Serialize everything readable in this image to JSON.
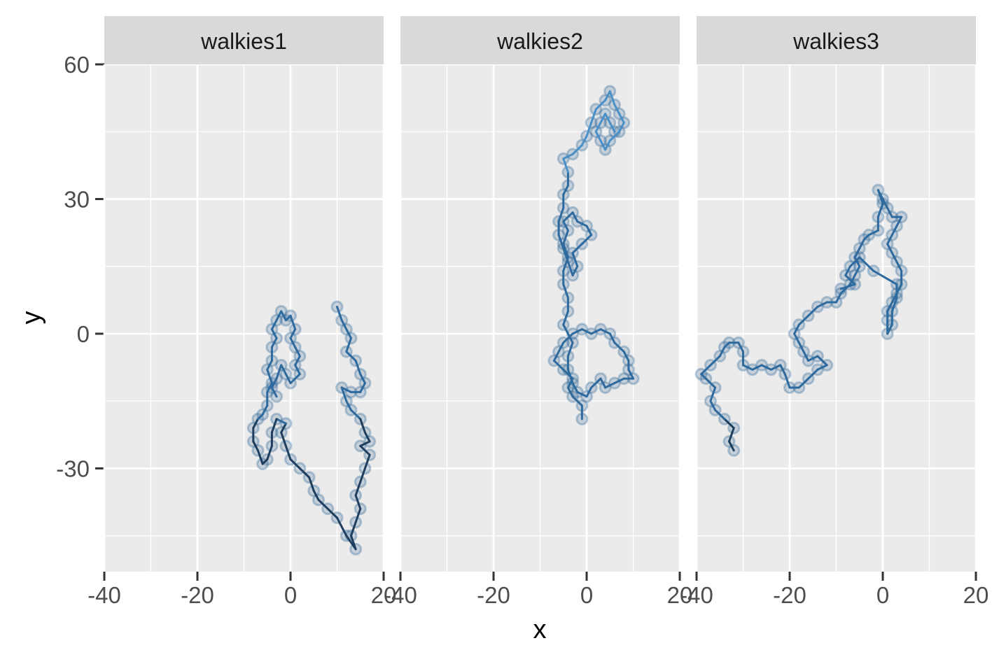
{
  "chart_data": {
    "type": "line",
    "facet_labels": [
      "walkies1",
      "walkies2",
      "walkies3"
    ],
    "xlabel": "x",
    "ylabel": "y",
    "xlim": [
      -40,
      20
    ],
    "ylim": [
      -53,
      60
    ],
    "x_ticks": [
      -40,
      -20,
      0,
      20
    ],
    "x_tick_labels": [
      "-40",
      "-20",
      "0",
      "20"
    ],
    "y_ticks": [
      -30,
      0,
      30,
      60
    ],
    "y_tick_labels": [
      "-30",
      "0",
      "30",
      "60"
    ],
    "grid": true,
    "legend": "none",
    "colors": {
      "panel_bg": "#EBEBEB",
      "strip_bg": "#D9D9D9",
      "grid": "#FFFFFF",
      "point_fill": "#3A6C9A",
      "line_dark": "#1F3E5E",
      "line_mid": "#2E6A9E",
      "line_light": "#4A90C8"
    },
    "series": [
      {
        "facet": "walkies1",
        "points": [
          [
            10,
            6
          ],
          [
            11,
            3
          ],
          [
            12,
            1
          ],
          [
            13,
            -1
          ],
          [
            12,
            -4
          ],
          [
            14,
            -6
          ],
          [
            15,
            -9
          ],
          [
            16,
            -11
          ],
          [
            15,
            -13
          ],
          [
            13,
            -13
          ],
          [
            11,
            -12
          ],
          [
            12,
            -15
          ],
          [
            13,
            -17
          ],
          [
            15,
            -19
          ],
          [
            16,
            -22
          ],
          [
            17,
            -24
          ],
          [
            15,
            -25
          ],
          [
            17,
            -27
          ],
          [
            16,
            -30
          ],
          [
            15,
            -33
          ],
          [
            14,
            -36
          ],
          [
            15,
            -39
          ],
          [
            14,
            -42
          ],
          [
            13,
            -45
          ],
          [
            14,
            -48
          ],
          [
            12,
            -45
          ],
          [
            10,
            -41
          ],
          [
            8,
            -39
          ],
          [
            6,
            -37
          ],
          [
            5,
            -35
          ],
          [
            4,
            -32
          ],
          [
            2,
            -30
          ],
          [
            0,
            -28
          ],
          [
            -1,
            -25
          ],
          [
            -2,
            -22
          ],
          [
            -1,
            -20
          ],
          [
            -3,
            -19
          ],
          [
            -4,
            -22
          ],
          [
            -4,
            -25
          ],
          [
            -5,
            -28
          ],
          [
            -6,
            -29
          ],
          [
            -7,
            -26
          ],
          [
            -8,
            -24
          ],
          [
            -8,
            -21
          ],
          [
            -7,
            -19
          ],
          [
            -6,
            -18
          ],
          [
            -5,
            -16
          ],
          [
            -5,
            -13
          ],
          [
            -4,
            -11
          ],
          [
            -5,
            -8
          ],
          [
            -4,
            -6
          ],
          [
            -4,
            -3
          ],
          [
            -3,
            -1
          ],
          [
            -4,
            1
          ],
          [
            -3,
            3
          ],
          [
            -2,
            5
          ],
          [
            -1,
            3
          ],
          [
            0,
            4
          ],
          [
            1,
            1
          ],
          [
            0,
            -1
          ],
          [
            1,
            -3
          ],
          [
            2,
            -5
          ],
          [
            1,
            -7
          ],
          [
            2,
            -9
          ],
          [
            0,
            -11
          ],
          [
            -1,
            -9
          ],
          [
            -2,
            -7
          ],
          [
            -3,
            -10
          ],
          [
            -4,
            -12
          ],
          [
            -3,
            -14
          ]
        ]
      },
      {
        "facet": "walkies2",
        "points": [
          [
            -1,
            -19
          ],
          [
            -1,
            -16
          ],
          [
            -3,
            -14
          ],
          [
            -4,
            -12
          ],
          [
            -3,
            -10
          ],
          [
            -5,
            -8
          ],
          [
            -7,
            -6
          ],
          [
            -6,
            -4
          ],
          [
            -5,
            -2
          ],
          [
            -3,
            0
          ],
          [
            -1,
            1
          ],
          [
            1,
            0
          ],
          [
            3,
            1
          ],
          [
            5,
            0
          ],
          [
            6,
            -2
          ],
          [
            8,
            -4
          ],
          [
            9,
            -6
          ],
          [
            9,
            -8
          ],
          [
            10,
            -10
          ],
          [
            8,
            -10
          ],
          [
            6,
            -11
          ],
          [
            4,
            -12
          ],
          [
            3,
            -10
          ],
          [
            1,
            -12
          ],
          [
            0,
            -14
          ],
          [
            -2,
            -13
          ],
          [
            -3,
            -11
          ],
          [
            -4,
            -8
          ],
          [
            -4,
            -5
          ],
          [
            -3,
            -2
          ],
          [
            -5,
            2
          ],
          [
            -4,
            5
          ],
          [
            -4,
            8
          ],
          [
            -5,
            11
          ],
          [
            -5,
            14
          ],
          [
            -4,
            17
          ],
          [
            -5,
            20
          ],
          [
            -4,
            23
          ],
          [
            -5,
            25
          ],
          [
            -3,
            27
          ],
          [
            -2,
            25
          ],
          [
            0,
            24
          ],
          [
            1,
            22
          ],
          [
            -1,
            20
          ],
          [
            -3,
            18
          ],
          [
            -2,
            15
          ],
          [
            -3,
            13
          ],
          [
            -4,
            16
          ],
          [
            -5,
            19
          ],
          [
            -6,
            22
          ],
          [
            -6,
            25
          ],
          [
            -5,
            28
          ],
          [
            -5,
            31
          ],
          [
            -4,
            33
          ],
          [
            -4,
            36
          ],
          [
            -5,
            39
          ],
          [
            -3,
            40
          ],
          [
            -1,
            42
          ],
          [
            0,
            44
          ],
          [
            1,
            47
          ],
          [
            2,
            50
          ],
          [
            4,
            52
          ],
          [
            5,
            54
          ],
          [
            6,
            51
          ],
          [
            7,
            49
          ],
          [
            8,
            47
          ],
          [
            7,
            45
          ],
          [
            5,
            43
          ],
          [
            4,
            41
          ],
          [
            3,
            43
          ],
          [
            2,
            45
          ],
          [
            3,
            47
          ],
          [
            4,
            49
          ],
          [
            5,
            47
          ],
          [
            6,
            45
          ]
        ]
      },
      {
        "facet": "walkies3",
        "points": [
          [
            -32,
            -26
          ],
          [
            -33,
            -24
          ],
          [
            -32,
            -21
          ],
          [
            -34,
            -19
          ],
          [
            -36,
            -17
          ],
          [
            -37,
            -15
          ],
          [
            -36,
            -12
          ],
          [
            -38,
            -10
          ],
          [
            -39,
            -9
          ],
          [
            -37,
            -7
          ],
          [
            -35,
            -5
          ],
          [
            -34,
            -3
          ],
          [
            -33,
            -2
          ],
          [
            -31,
            -2
          ],
          [
            -30,
            -4
          ],
          [
            -30,
            -7
          ],
          [
            -28,
            -8
          ],
          [
            -26,
            -7
          ],
          [
            -24,
            -8
          ],
          [
            -22,
            -7
          ],
          [
            -21,
            -9
          ],
          [
            -20,
            -12
          ],
          [
            -18,
            -12
          ],
          [
            -16,
            -10
          ],
          [
            -14,
            -8
          ],
          [
            -12,
            -7
          ],
          [
            -14,
            -5
          ],
          [
            -16,
            -6
          ],
          [
            -17,
            -4
          ],
          [
            -18,
            -2
          ],
          [
            -19,
            0
          ],
          [
            -18,
            2
          ],
          [
            -16,
            4
          ],
          [
            -14,
            6
          ],
          [
            -12,
            7
          ],
          [
            -10,
            7
          ],
          [
            -9,
            9
          ],
          [
            -7,
            11
          ],
          [
            -6,
            13
          ],
          [
            -5,
            15
          ],
          [
            -6,
            17
          ],
          [
            -5,
            19
          ],
          [
            -4,
            21
          ],
          [
            -3,
            22
          ],
          [
            -1,
            23
          ],
          [
            -1,
            26
          ],
          [
            0,
            29
          ],
          [
            -1,
            32
          ],
          [
            0,
            30
          ],
          [
            1,
            28
          ],
          [
            2,
            26
          ],
          [
            4,
            26
          ],
          [
            3,
            24
          ],
          [
            2,
            22
          ],
          [
            1,
            20
          ],
          [
            2,
            18
          ],
          [
            3,
            16
          ],
          [
            4,
            14
          ],
          [
            4,
            11
          ],
          [
            3,
            9
          ],
          [
            2,
            7
          ],
          [
            1,
            5
          ],
          [
            1,
            3
          ],
          [
            1,
            0
          ],
          [
            2,
            2
          ],
          [
            2,
            5
          ],
          [
            3,
            8
          ],
          [
            3,
            11
          ],
          [
            -2,
            14
          ],
          [
            -5,
            17
          ],
          [
            -7,
            15
          ],
          [
            -8,
            13
          ],
          [
            -6,
            11
          ],
          [
            -9,
            10
          ]
        ]
      }
    ]
  }
}
